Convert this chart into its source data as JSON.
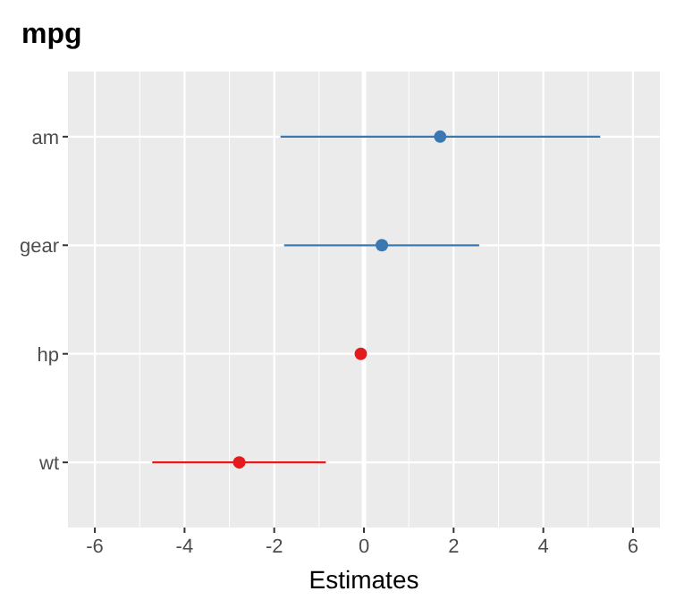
{
  "chart_data": {
    "type": "scatter",
    "orientation": "horizontal",
    "title": "mpg",
    "xlabel": "Estimates",
    "categories": [
      "am",
      "gear",
      "hp",
      "wt"
    ],
    "series": [
      {
        "color": "#3a78b2",
        "values": [
          1.7,
          0.4,
          null,
          null
        ],
        "errors": [
          [
            -1.86,
            5.27
          ],
          [
            -1.78,
            2.57
          ],
          null,
          null
        ]
      },
      {
        "color": "#e41a1c",
        "values": [
          null,
          null,
          -0.07,
          -2.78
        ],
        "errors": [
          null,
          null,
          null,
          [
            -4.72,
            -0.85
          ]
        ]
      }
    ],
    "xlim": [
      -6.6,
      6.6
    ],
    "xticks": [
      -6,
      -4,
      -2,
      0,
      2,
      4,
      6
    ],
    "grid": true,
    "marker": "circle",
    "ref_lines": [
      {
        "axis": "x",
        "value": 0,
        "color": "#ffffff"
      }
    ]
  }
}
